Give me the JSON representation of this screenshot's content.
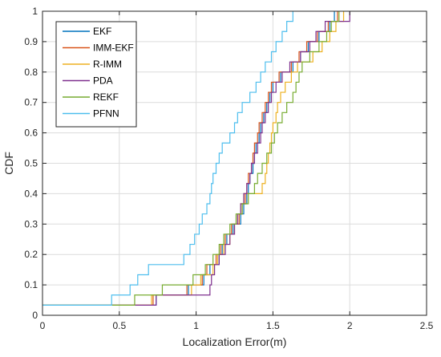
{
  "chart_data": {
    "type": "line",
    "subtype": "empirical-cdf-stairs",
    "xlabel": "Localization Error(m)",
    "ylabel": "CDF",
    "xlim": [
      0,
      2.5
    ],
    "ylim": [
      0,
      1
    ],
    "xticks": [
      0,
      0.5,
      1,
      1.5,
      2,
      2.5
    ],
    "xtick_labels": [
      "0",
      "0.5",
      "1",
      "1.5",
      "2",
      "2.5"
    ],
    "yticks": [
      0,
      0.1,
      0.2,
      0.3,
      0.4,
      0.5,
      0.6,
      0.7,
      0.8,
      0.9,
      1
    ],
    "ytick_labels": [
      "0",
      "0.1",
      "0.2",
      "0.3",
      "0.4",
      "0.5",
      "0.6",
      "0.7",
      "0.8",
      "0.9",
      "1"
    ],
    "grid": true,
    "legend_position": "top-left",
    "series": [
      {
        "name": "EKF",
        "color": "#0072BD",
        "x": [
          0.5,
          0.74,
          0.95,
          1.05,
          1.09,
          1.15,
          1.17,
          1.2,
          1.24,
          1.29,
          1.31,
          1.33,
          1.34,
          1.35,
          1.37,
          1.38,
          1.39,
          1.41,
          1.42,
          1.44,
          1.46,
          1.48,
          1.5,
          1.55,
          1.63,
          1.68,
          1.73,
          1.8,
          1.87,
          1.9
        ],
        "y": [
          0.0333,
          0.0667,
          0.1,
          0.1333,
          0.1667,
          0.2,
          0.2333,
          0.2667,
          0.3,
          0.3333,
          0.3667,
          0.4,
          0.4333,
          0.4667,
          0.5,
          0.5333,
          0.5667,
          0.6,
          0.6333,
          0.6667,
          0.7,
          0.7333,
          0.7667,
          0.8,
          0.8333,
          0.8667,
          0.9,
          0.9333,
          0.9667,
          1.0
        ]
      },
      {
        "name": "IMM-EKF",
        "color": "#D95319",
        "x": [
          0.49,
          0.72,
          0.94,
          1.04,
          1.07,
          1.13,
          1.16,
          1.19,
          1.23,
          1.28,
          1.3,
          1.32,
          1.33,
          1.34,
          1.36,
          1.37,
          1.38,
          1.4,
          1.41,
          1.43,
          1.45,
          1.47,
          1.49,
          1.54,
          1.62,
          1.67,
          1.72,
          1.79,
          1.86,
          1.92
        ],
        "y": [
          0.0333,
          0.0667,
          0.1,
          0.1333,
          0.1667,
          0.2,
          0.2333,
          0.2667,
          0.3,
          0.3333,
          0.3667,
          0.4,
          0.4333,
          0.4667,
          0.5,
          0.5333,
          0.5667,
          0.6,
          0.6333,
          0.6667,
          0.7,
          0.7333,
          0.7667,
          0.8,
          0.8333,
          0.8667,
          0.9,
          0.9333,
          0.9667,
          1.0
        ]
      },
      {
        "name": "R-IMM",
        "color": "#EDB120",
        "x": [
          0.48,
          0.71,
          0.97,
          1.03,
          1.11,
          1.14,
          1.18,
          1.22,
          1.25,
          1.27,
          1.29,
          1.31,
          1.43,
          1.45,
          1.46,
          1.47,
          1.48,
          1.49,
          1.5,
          1.52,
          1.53,
          1.55,
          1.58,
          1.62,
          1.66,
          1.76,
          1.82,
          1.87,
          1.91,
          1.96
        ],
        "y": [
          0.0333,
          0.0667,
          0.1,
          0.1333,
          0.1667,
          0.2,
          0.2333,
          0.2667,
          0.3,
          0.3333,
          0.3667,
          0.4,
          0.4333,
          0.4667,
          0.5,
          0.5333,
          0.5667,
          0.6,
          0.6333,
          0.6667,
          0.7,
          0.7333,
          0.7667,
          0.8,
          0.8333,
          0.8667,
          0.9,
          0.9333,
          0.9667,
          1.0
        ]
      },
      {
        "name": "PDA",
        "color": "#7E2F8E",
        "x": [
          0.46,
          0.74,
          1.09,
          1.1,
          1.12,
          1.15,
          1.19,
          1.22,
          1.25,
          1.27,
          1.29,
          1.31,
          1.33,
          1.35,
          1.36,
          1.38,
          1.4,
          1.42,
          1.43,
          1.45,
          1.47,
          1.49,
          1.52,
          1.56,
          1.61,
          1.68,
          1.74,
          1.78,
          1.84,
          2.0
        ],
        "y": [
          0.0333,
          0.0667,
          0.1,
          0.1333,
          0.1667,
          0.2,
          0.2333,
          0.2667,
          0.3,
          0.3333,
          0.3667,
          0.4,
          0.4333,
          0.4667,
          0.5,
          0.5333,
          0.5667,
          0.6,
          0.6333,
          0.6667,
          0.7,
          0.7333,
          0.7667,
          0.8,
          0.8333,
          0.8667,
          0.9,
          0.9333,
          0.9667,
          1.0
        ]
      },
      {
        "name": "REKF",
        "color": "#77AC30",
        "x": [
          0.47,
          0.6,
          0.78,
          0.98,
          1.06,
          1.11,
          1.15,
          1.18,
          1.22,
          1.26,
          1.3,
          1.34,
          1.38,
          1.4,
          1.43,
          1.46,
          1.49,
          1.51,
          1.53,
          1.56,
          1.59,
          1.63,
          1.65,
          1.67,
          1.69,
          1.74,
          1.8,
          1.85,
          1.88,
          1.93
        ],
        "y": [
          0.0333,
          0.0667,
          0.1,
          0.1333,
          0.1667,
          0.2,
          0.2333,
          0.2667,
          0.3,
          0.3333,
          0.3667,
          0.4,
          0.4333,
          0.4667,
          0.5,
          0.5333,
          0.5667,
          0.6,
          0.6333,
          0.6667,
          0.7,
          0.7333,
          0.7667,
          0.8,
          0.8333,
          0.8667,
          0.9,
          0.9333,
          0.9667,
          1.0
        ]
      },
      {
        "name": "PFNN",
        "color": "#4DBEEE",
        "x": [
          0.4,
          0.45,
          0.57,
          0.62,
          0.69,
          0.92,
          0.96,
          0.99,
          1.02,
          1.04,
          1.07,
          1.09,
          1.1,
          1.11,
          1.13,
          1.15,
          1.17,
          1.22,
          1.25,
          1.27,
          1.3,
          1.35,
          1.39,
          1.42,
          1.45,
          1.49,
          1.52,
          1.56,
          1.59,
          1.63
        ],
        "y": [
          0.0333,
          0.0667,
          0.1,
          0.1333,
          0.1667,
          0.2,
          0.2333,
          0.2667,
          0.3,
          0.3333,
          0.3667,
          0.4,
          0.4333,
          0.4667,
          0.5,
          0.5333,
          0.5667,
          0.6,
          0.6333,
          0.6667,
          0.7,
          0.7333,
          0.7667,
          0.8,
          0.8333,
          0.8667,
          0.9,
          0.9333,
          0.9667,
          1.0
        ]
      }
    ]
  }
}
